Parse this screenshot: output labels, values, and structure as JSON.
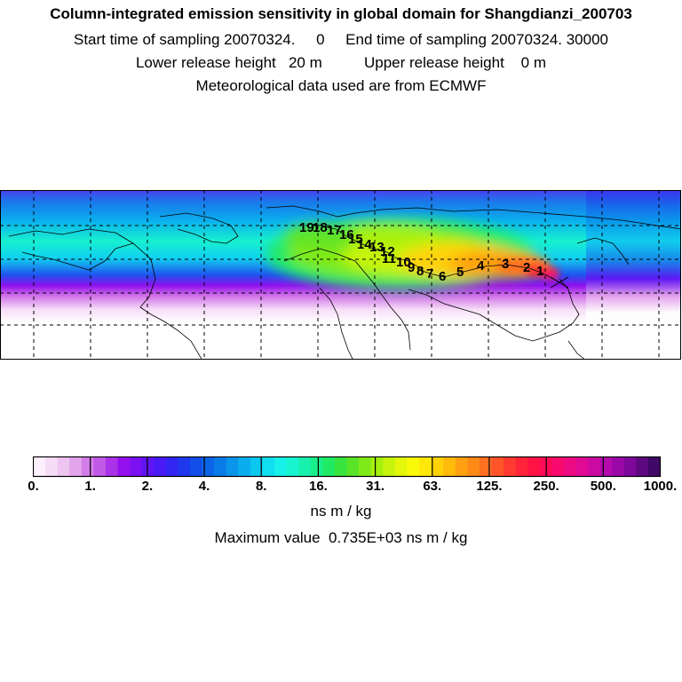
{
  "header": {
    "title": "Column-integrated emission sensitivity in global domain for Shangdianzi_200703",
    "line2": "Start time of sampling 20070324.     0     End time of sampling 20070324. 30000",
    "line3": "Lower release height   20 m          Upper release height    0 m",
    "line4": "Meteorological data used are from ECMWF"
  },
  "trajectory_labels": [
    "1",
    "2",
    "3",
    "4",
    "5",
    "6",
    "7",
    "8",
    "9",
    "10",
    "11",
    "12",
    "13",
    "14",
    "15",
    "16",
    "17",
    "18",
    "19"
  ],
  "colorbar": {
    "colors": [
      "#fdf0fd",
      "#f6ddf7",
      "#eec4f1",
      "#e4a4ec",
      "#d37ee8",
      "#c05ae6",
      "#aa32e8",
      "#9510ee",
      "#7b10f0",
      "#6014f3",
      "#4a1af6",
      "#3326f2",
      "#1f38ee",
      "#134ee8",
      "#0c64e6",
      "#0a7ce8",
      "#0a94ea",
      "#0aaeee",
      "#0ac8f0",
      "#10dff0",
      "#18f0ea",
      "#18f4d0",
      "#18f0ae",
      "#1aee8a",
      "#20ea64",
      "#38e43e",
      "#5ae428",
      "#80ea18",
      "#a6f010",
      "#c6f40c",
      "#e4f70a",
      "#fafa08",
      "#ffe808",
      "#ffd208",
      "#ffba0a",
      "#ffa010",
      "#ff8a18",
      "#ff7020",
      "#ff5428",
      "#ff3a30",
      "#ff2438",
      "#ff1244",
      "#ff0a58",
      "#f80a6e",
      "#ee0a82",
      "#e00a94",
      "#cc0aa2",
      "#b40aac",
      "#9a08a8",
      "#7e089a",
      "#5e0880",
      "#400868"
    ],
    "tick_labels": [
      "0.",
      "1.",
      "2.",
      "4.",
      "8.",
      "16.",
      "31.",
      "63.",
      "125.",
      "250.",
      "500.",
      "1000."
    ],
    "unit": "ns m / kg",
    "max_label": "Maximum value  0.735E+03 ns m / kg"
  }
}
